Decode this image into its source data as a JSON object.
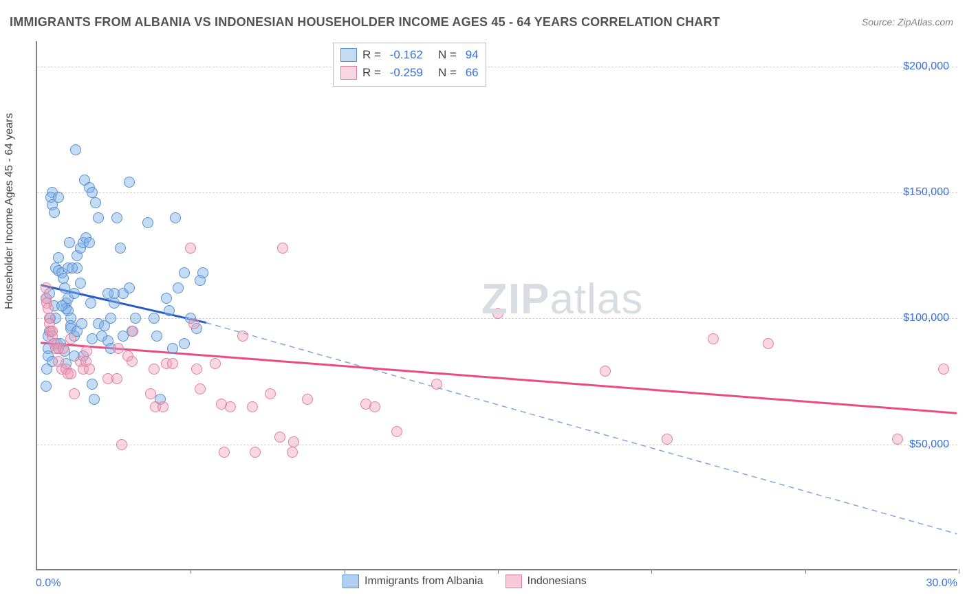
{
  "title": "IMMIGRANTS FROM ALBANIA VS INDONESIAN HOUSEHOLDER INCOME AGES 45 - 64 YEARS CORRELATION CHART",
  "source": "Source: ZipAtlas.com",
  "ylabel": "Householder Income Ages 45 - 64 years",
  "watermark_bold": "ZIP",
  "watermark_rest": "atlas",
  "chart": {
    "type": "scatter",
    "xlim": [
      0,
      30
    ],
    "ylim": [
      0,
      210000
    ],
    "x_tick_step": 5,
    "y_ticks": [
      50000,
      100000,
      150000,
      200000
    ],
    "y_tick_labels": [
      "$50,000",
      "$100,000",
      "$150,000",
      "$200,000"
    ],
    "x_min_label": "0.0%",
    "x_max_label": "30.0%",
    "grid_color": "#d0d0d0",
    "axis_color": "#808080",
    "background_color": "#ffffff",
    "series": [
      {
        "name": "Immigrants from Albania",
        "R": "-0.162",
        "N": "94",
        "point_fill": "rgba(125,175,230,0.45)",
        "point_stroke": "#5a8fcf",
        "line_color": "#2a5bc4",
        "line_dash_color": "#7fa6d8",
        "regression_solid": {
          "x1": 0.1,
          "y1": 113000,
          "x2": 5.5,
          "y2": 98000
        },
        "regression_dashed": {
          "x1": 5.5,
          "y1": 98000,
          "x2": 30,
          "y2": 14000
        },
        "points": [
          [
            0.3,
            108000
          ],
          [
            0.4,
            110000
          ],
          [
            0.4,
            95000
          ],
          [
            0.35,
            88000
          ],
          [
            0.35,
            85000
          ],
          [
            0.32,
            80000
          ],
          [
            0.5,
            150000
          ],
          [
            0.45,
            148000
          ],
          [
            0.5,
            145000
          ],
          [
            0.55,
            142000
          ],
          [
            0.6,
            120000
          ],
          [
            0.7,
            119000
          ],
          [
            0.7,
            124000
          ],
          [
            0.8,
            118000
          ],
          [
            0.85,
            116000
          ],
          [
            0.9,
            112000
          ],
          [
            0.95,
            106000
          ],
          [
            0.95,
            104000
          ],
          [
            1.0,
            108000
          ],
          [
            1.0,
            103000
          ],
          [
            1.1,
            100000
          ],
          [
            1.1,
            97000
          ],
          [
            1.1,
            96000
          ],
          [
            1.2,
            110000
          ],
          [
            1.2,
            93000
          ],
          [
            1.3,
            125000
          ],
          [
            1.3,
            120000
          ],
          [
            1.4,
            114000
          ],
          [
            1.4,
            128000
          ],
          [
            1.5,
            130000
          ],
          [
            1.6,
            132000
          ],
          [
            1.55,
            155000
          ],
          [
            1.7,
            152000
          ],
          [
            1.8,
            150000
          ],
          [
            1.9,
            146000
          ],
          [
            1.8,
            92000
          ],
          [
            1.8,
            74000
          ],
          [
            1.85,
            68000
          ],
          [
            2.0,
            140000
          ],
          [
            2.0,
            98000
          ],
          [
            2.1,
            93000
          ],
          [
            2.2,
            97000
          ],
          [
            2.3,
            91000
          ],
          [
            2.4,
            88000
          ],
          [
            2.4,
            100000
          ],
          [
            2.5,
            110000
          ],
          [
            2.5,
            106000
          ],
          [
            2.6,
            140000
          ],
          [
            2.7,
            128000
          ],
          [
            2.8,
            93000
          ],
          [
            2.8,
            110000
          ],
          [
            3.0,
            112000
          ],
          [
            3.0,
            154000
          ],
          [
            3.1,
            95000
          ],
          [
            3.2,
            100000
          ],
          [
            3.6,
            138000
          ],
          [
            3.8,
            100000
          ],
          [
            3.9,
            93000
          ],
          [
            4.0,
            68000
          ],
          [
            4.2,
            108000
          ],
          [
            4.3,
            103000
          ],
          [
            4.4,
            88000
          ],
          [
            4.5,
            140000
          ],
          [
            4.6,
            112000
          ],
          [
            4.8,
            90000
          ],
          [
            4.8,
            118000
          ],
          [
            5.0,
            100000
          ],
          [
            5.2,
            96000
          ],
          [
            5.3,
            115000
          ],
          [
            5.4,
            118000
          ],
          [
            1.25,
            167000
          ],
          [
            0.3,
            73000
          ],
          [
            0.35,
            93000
          ],
          [
            0.5,
            83000
          ],
          [
            0.42,
            100000
          ],
          [
            0.55,
            105000
          ],
          [
            0.7,
            148000
          ],
          [
            0.6,
            100000
          ],
          [
            0.65,
            90000
          ],
          [
            0.7,
            88000
          ],
          [
            0.75,
            90000
          ],
          [
            0.8,
            105000
          ],
          [
            0.9,
            87000
          ],
          [
            0.95,
            82000
          ],
          [
            1.0,
            120000
          ],
          [
            1.05,
            130000
          ],
          [
            1.15,
            120000
          ],
          [
            1.2,
            85000
          ],
          [
            1.3,
            95000
          ],
          [
            1.45,
            98000
          ],
          [
            1.5,
            85000
          ],
          [
            1.7,
            130000
          ],
          [
            1.75,
            106000
          ],
          [
            2.3,
            110000
          ]
        ]
      },
      {
        "name": "Indonesians",
        "R": "-0.259",
        "N": "66",
        "point_fill": "rgba(240,155,180,0.40)",
        "point_stroke": "#e07fa0",
        "line_color": "#e94b82",
        "regression_solid": {
          "x1": 0.1,
          "y1": 90000,
          "x2": 30,
          "y2": 62000
        },
        "points": [
          [
            0.3,
            112000
          ],
          [
            0.3,
            108000
          ],
          [
            0.32,
            106000
          ],
          [
            0.35,
            104000
          ],
          [
            0.4,
            100000
          ],
          [
            0.4,
            98000
          ],
          [
            0.45,
            95000
          ],
          [
            0.5,
            95000
          ],
          [
            0.5,
            93000
          ],
          [
            0.55,
            90000
          ],
          [
            0.6,
            88000
          ],
          [
            0.7,
            88000
          ],
          [
            0.7,
            83000
          ],
          [
            0.8,
            80000
          ],
          [
            0.85,
            88000
          ],
          [
            0.95,
            80000
          ],
          [
            1.0,
            78000
          ],
          [
            1.1,
            92000
          ],
          [
            1.1,
            78000
          ],
          [
            1.2,
            70000
          ],
          [
            1.4,
            83000
          ],
          [
            1.5,
            80000
          ],
          [
            1.6,
            83000
          ],
          [
            1.62,
            87000
          ],
          [
            1.7,
            80000
          ],
          [
            2.3,
            76000
          ],
          [
            2.6,
            76000
          ],
          [
            2.65,
            88000
          ],
          [
            2.75,
            50000
          ],
          [
            2.95,
            85000
          ],
          [
            3.1,
            83000
          ],
          [
            3.12,
            95000
          ],
          [
            3.7,
            70000
          ],
          [
            3.8,
            80000
          ],
          [
            3.85,
            65000
          ],
          [
            4.1,
            65000
          ],
          [
            4.2,
            82000
          ],
          [
            4.4,
            82000
          ],
          [
            5.0,
            128000
          ],
          [
            5.1,
            98000
          ],
          [
            5.2,
            80000
          ],
          [
            5.3,
            72000
          ],
          [
            5.8,
            82000
          ],
          [
            6.0,
            66000
          ],
          [
            6.1,
            47000
          ],
          [
            6.3,
            65000
          ],
          [
            6.7,
            93000
          ],
          [
            7.0,
            65000
          ],
          [
            7.1,
            47000
          ],
          [
            7.6,
            70000
          ],
          [
            7.9,
            53000
          ],
          [
            8.0,
            128000
          ],
          [
            8.3,
            47000
          ],
          [
            8.35,
            51000
          ],
          [
            8.8,
            68000
          ],
          [
            10.7,
            66000
          ],
          [
            11.0,
            65000
          ],
          [
            11.7,
            55000
          ],
          [
            13.0,
            74000
          ],
          [
            15.0,
            102000
          ],
          [
            18.5,
            79000
          ],
          [
            20.5,
            52000
          ],
          [
            22.0,
            92000
          ],
          [
            23.8,
            90000
          ],
          [
            28.0,
            52000
          ],
          [
            29.5,
            80000
          ]
        ]
      }
    ]
  },
  "legend_bottom": [
    {
      "label": "Immigrants from Albania",
      "fill": "rgba(125,175,230,0.6)",
      "stroke": "#5a8fcf"
    },
    {
      "label": "Indonesians",
      "fill": "rgba(240,155,180,0.55)",
      "stroke": "#e07fa0"
    }
  ]
}
